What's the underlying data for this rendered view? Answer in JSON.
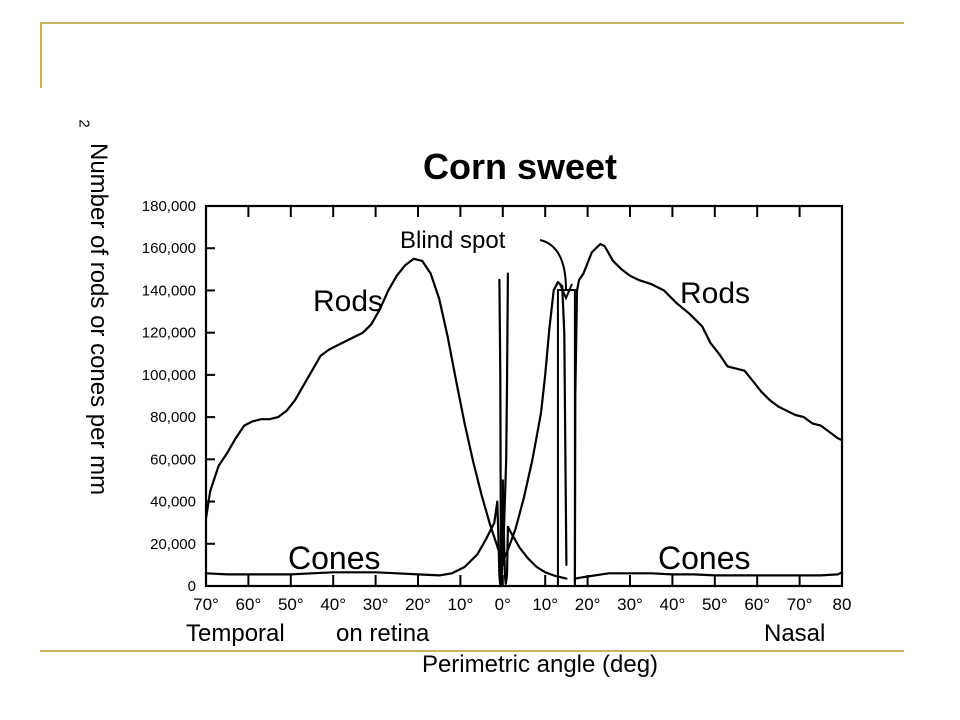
{
  "slide": {
    "accent_color": "#c8b25e"
  },
  "chart_data": {
    "type": "line",
    "title": "Corn sweet",
    "ylabel": "Number of rods or cones per mm",
    "ylabel_superscript": "2",
    "xlabel": "Perimetric angle (deg)",
    "xlabel_left": "Temporal",
    "xlabel_mid": "on retina",
    "xlabel_right": "Nasal",
    "ylim": [
      0,
      180000
    ],
    "xlim": [
      -70,
      80
    ],
    "y_ticks": [
      "0",
      "20,000",
      "40,000",
      "60,000",
      "80,000",
      "100,000",
      "120,000",
      "140,000",
      "160,000",
      "180,000"
    ],
    "x_ticks": [
      "70°",
      "60°",
      "50°",
      "40°",
      "30°",
      "20°",
      "10°",
      "0°",
      "10°",
      "20°",
      "30°",
      "40°",
      "50°",
      "60°",
      "70°",
      "80"
    ],
    "grid": false,
    "annotations": {
      "blind_spot": "Blind spot",
      "rods_left": "Rods",
      "rods_right": "Rods",
      "cones_left": "Cones",
      "cones_right": "Cones"
    },
    "blind_spot_range": [
      13,
      17
    ],
    "series": [
      {
        "name": "Rods",
        "segments": [
          [
            [
              -70,
              32000
            ],
            [
              -69,
              45000
            ],
            [
              -67,
              57000
            ],
            [
              -65,
              63000
            ],
            [
              -63,
              70000
            ],
            [
              -61,
              76000
            ],
            [
              -59,
              78000
            ],
            [
              -57,
              79000
            ],
            [
              -55,
              79000
            ],
            [
              -53,
              80000
            ],
            [
              -51,
              83000
            ],
            [
              -49,
              88000
            ],
            [
              -47,
              95000
            ],
            [
              -45,
              102000
            ],
            [
              -43,
              109000
            ],
            [
              -41,
              112000
            ],
            [
              -39,
              114000
            ],
            [
              -37,
              116000
            ],
            [
              -35,
              118000
            ],
            [
              -33,
              120000
            ],
            [
              -31,
              124000
            ],
            [
              -29,
              131000
            ],
            [
              -27,
              140000
            ],
            [
              -25,
              147000
            ],
            [
              -23,
              152000
            ],
            [
              -21,
              155000
            ],
            [
              -19,
              154000
            ],
            [
              -17,
              148000
            ],
            [
              -15,
              136000
            ],
            [
              -13,
              118000
            ],
            [
              -11,
              97000
            ],
            [
              -9,
              77000
            ],
            [
              -7,
              59000
            ],
            [
              -5,
              43000
            ],
            [
              -3,
              29000
            ],
            [
              -1,
              17000
            ],
            [
              0,
              12000
            ],
            [
              1,
              16000
            ],
            [
              3,
              27000
            ],
            [
              5,
              42000
            ],
            [
              7,
              60000
            ],
            [
              9,
              82000
            ],
            [
              10,
              100000
            ],
            [
              11,
              122000
            ],
            [
              12,
              140000
            ],
            [
              13,
              144000
            ],
            [
              14,
              142000
            ],
            [
              14.5,
              120000
            ],
            [
              14.8,
              50000
            ],
            [
              15,
              10000
            ]
          ],
          [
            [
              17,
              2000
            ],
            [
              17.1,
              90000
            ],
            [
              17.5,
              140000
            ],
            [
              18,
              145000
            ],
            [
              19,
              148000
            ],
            [
              21,
              158000
            ],
            [
              23,
              162000
            ],
            [
              24,
              161000
            ],
            [
              26,
              154000
            ],
            [
              28,
              150000
            ],
            [
              30,
              147000
            ],
            [
              32,
              145000
            ],
            [
              35,
              143000
            ],
            [
              38,
              140000
            ],
            [
              41,
              134000
            ],
            [
              44,
              129000
            ],
            [
              47,
              123000
            ],
            [
              49,
              115000
            ],
            [
              51,
              110000
            ],
            [
              53,
              104000
            ],
            [
              55,
              103000
            ],
            [
              57,
              102000
            ],
            [
              59,
              97000
            ],
            [
              61,
              92000
            ],
            [
              63,
              88000
            ],
            [
              65,
              85000
            ],
            [
              67,
              83000
            ],
            [
              69,
              81000
            ],
            [
              71,
              80000
            ],
            [
              73,
              77000
            ],
            [
              75,
              76000
            ],
            [
              77,
              73000
            ],
            [
              79,
              70000
            ],
            [
              80,
              69000
            ]
          ]
        ]
      },
      {
        "name": "Cones",
        "segments": [
          [
            [
              -70,
              6000
            ],
            [
              -65,
              5500
            ],
            [
              -60,
              5500
            ],
            [
              -55,
              5500
            ],
            [
              -50,
              5500
            ],
            [
              -45,
              6000
            ],
            [
              -40,
              6500
            ],
            [
              -35,
              6500
            ],
            [
              -30,
              6500
            ],
            [
              -25,
              6000
            ],
            [
              -20,
              5500
            ],
            [
              -15,
              5000
            ],
            [
              -12,
              6000
            ],
            [
              -9,
              9000
            ],
            [
              -6,
              15000
            ],
            [
              -4,
              22000
            ],
            [
              -2,
              30000
            ],
            [
              -1.3,
              40000
            ],
            [
              -1,
              20000
            ],
            [
              -0.8,
              5000
            ],
            [
              -0.6,
              0
            ],
            [
              -0.3,
              0
            ],
            [
              -0.1,
              15000
            ],
            [
              0,
              50000
            ],
            [
              0.2,
              30000
            ],
            [
              0.5,
              5000
            ],
            [
              0.7,
              1000
            ],
            [
              1,
              5000
            ],
            [
              1.2,
              28000
            ],
            [
              2,
              25000
            ],
            [
              4,
              18000
            ],
            [
              6,
              13000
            ],
            [
              8,
              9000
            ],
            [
              10,
              6500
            ],
            [
              12,
              5000
            ],
            [
              14,
              4000
            ],
            [
              15,
              3500
            ]
          ],
          [
            [
              17,
              3500
            ],
            [
              20,
              4500
            ],
            [
              25,
              6000
            ],
            [
              30,
              6000
            ],
            [
              35,
              6000
            ],
            [
              40,
              5500
            ],
            [
              45,
              5500
            ],
            [
              50,
              5000
            ],
            [
              55,
              5000
            ],
            [
              60,
              5000
            ],
            [
              65,
              5000
            ],
            [
              70,
              5000
            ],
            [
              75,
              5000
            ],
            [
              79,
              5500
            ],
            [
              80,
              6500
            ]
          ]
        ]
      },
      {
        "name": "",
        "segments": [
          [
            [
              -0.8,
              145000
            ],
            [
              -0.6,
              100000
            ],
            [
              -0.5,
              40000
            ],
            [
              -0.4,
              0
            ]
          ],
          [
            [
              0,
              10000
            ],
            [
              0.8,
              60000
            ],
            [
              1,
              95000
            ],
            [
              1.2,
              148000
            ]
          ]
        ]
      }
    ]
  }
}
